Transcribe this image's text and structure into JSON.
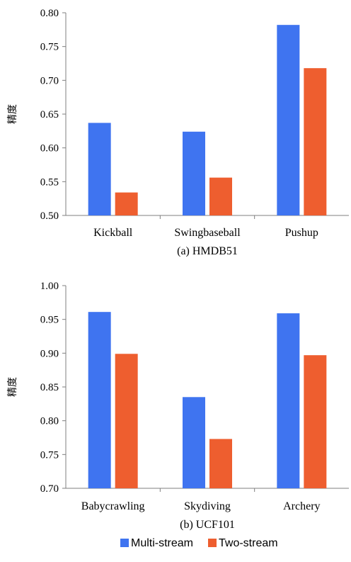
{
  "colors": {
    "multi": "#3F74F0",
    "two": "#EE5E2F",
    "axis": "#7f7f7f"
  },
  "legend": {
    "items": [
      {
        "label": "Multi-stream",
        "color": "#3F74F0"
      },
      {
        "label": "Two-stream",
        "color": "#EE5E2F"
      }
    ]
  },
  "chart_data": [
    {
      "type": "bar",
      "caption": "(a) HMDB51",
      "ylabel": "精度",
      "categories": [
        "Kickball",
        "Swingbaseball",
        "Pushup"
      ],
      "series": [
        {
          "name": "Multi-stream",
          "values": [
            0.637,
            0.624,
            0.782
          ]
        },
        {
          "name": "Two-stream",
          "values": [
            0.534,
            0.556,
            0.718
          ]
        }
      ],
      "ylim": [
        0.5,
        0.8
      ],
      "yticks": [
        "0.50",
        "0.55",
        "0.60",
        "0.65",
        "0.70",
        "0.75",
        "0.80"
      ],
      "grid": false,
      "legend": "bottom"
    },
    {
      "type": "bar",
      "caption": "(b) UCF101",
      "ylabel": "精度",
      "categories": [
        "Babycrawling",
        "Skydiving",
        "Archery"
      ],
      "series": [
        {
          "name": "Multi-stream",
          "values": [
            0.961,
            0.835,
            0.959
          ]
        },
        {
          "name": "Two-stream",
          "values": [
            0.899,
            0.773,
            0.897
          ]
        }
      ],
      "ylim": [
        0.7,
        1.0
      ],
      "yticks": [
        "0.70",
        "0.75",
        "0.80",
        "0.85",
        "0.90",
        "0.95",
        "1.00"
      ],
      "grid": false,
      "legend": "bottom"
    }
  ]
}
